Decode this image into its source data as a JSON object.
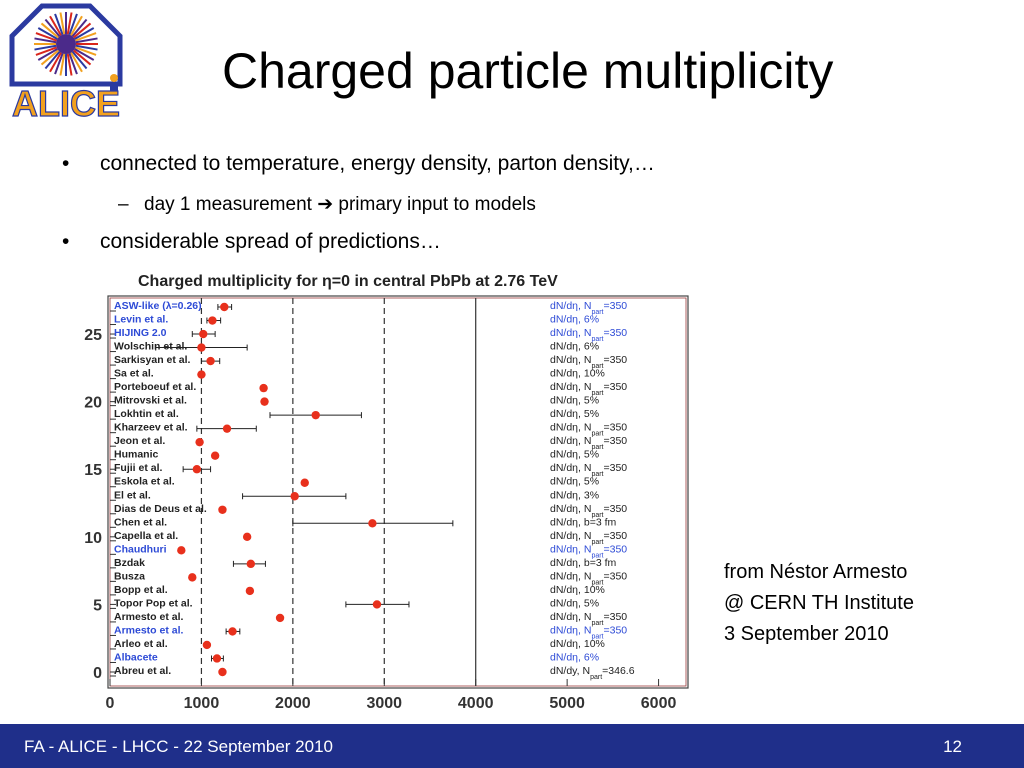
{
  "logo": {
    "text": "ALICE",
    "colors": {
      "blue": "#2b3aa0",
      "red": "#d9261c",
      "orange": "#f2a11f",
      "purple": "#4b2a8a"
    }
  },
  "slide": {
    "title": "Charged particle multiplicity",
    "bullets": [
      {
        "text": "connected to temperature, energy density, parton density,…",
        "sub": [
          "day 1 measurement ➔ primary input to models"
        ]
      },
      {
        "text": "considerable spread of predictions…",
        "sub": []
      }
    ],
    "bullet_symbol": "•",
    "sub_symbol": "–"
  },
  "credit": {
    "lines": [
      "from Néstor Armesto",
      "@ CERN TH Institute",
      "3 September 2010"
    ]
  },
  "footer": {
    "left": "FA - ALICE - LHCC - 22 September 2010",
    "right": "12",
    "color": "#1f2f8a"
  },
  "chart_data": {
    "type": "scatter",
    "title": "Charged multiplicity for η=0 in central PbPb at 2.76 TeV",
    "xlim": [
      0,
      6300
    ],
    "ylim": [
      0,
      27
    ],
    "xticks": [
      0,
      1000,
      2000,
      3000,
      4000,
      5000,
      6000
    ],
    "yticks": [
      0,
      5,
      10,
      15,
      20,
      25
    ],
    "dashed_lines_x": [
      1000,
      2000,
      3000
    ],
    "solid_lines_x": [
      4000
    ],
    "marker_color": "#e8301c",
    "label_highlight_color": "#2e4bd6",
    "models": [
      {
        "label": "ASW-like (λ=0.26)",
        "y": 27,
        "x": 1250,
        "err": [
          1180,
          1330
        ],
        "cond": "dN/dη, N",
        "sub": "part",
        "val": "=350",
        "highlight": true
      },
      {
        "label": "Levin et al.",
        "y": 26,
        "x": 1120,
        "err": [
          1060,
          1210
        ],
        "cond": "dN/dη, 6%",
        "highlight": true
      },
      {
        "label": "HIJING 2.0",
        "y": 25,
        "x": 1020,
        "err": [
          900,
          1150
        ],
        "cond": "dN/dη, N",
        "sub": "part",
        "val": "=350",
        "highlight": true
      },
      {
        "label": "Wolschin et al.",
        "y": 24,
        "x": 1000,
        "err": [
          500,
          1500
        ],
        "cond": "dN/dη, 6%"
      },
      {
        "label": "Sarkisyan et al.",
        "y": 23,
        "x": 1100,
        "err": [
          1000,
          1200
        ],
        "cond": "dN/dη, N",
        "sub": "part",
        "val": "=350"
      },
      {
        "label": "Sa et al.",
        "y": 22,
        "x": 1000,
        "cond": "dN/dη, 10%"
      },
      {
        "label": "Porteboeuf et al.",
        "y": 21,
        "x": 1680,
        "cond": "dN/dη, N",
        "sub": "part",
        "val": "=350"
      },
      {
        "label": "Mitrovski et al.",
        "y": 20,
        "x": 1690,
        "cond": "dN/dη, 5%"
      },
      {
        "label": "Lokhtin et al.",
        "y": 19,
        "x": 2250,
        "err": [
          1750,
          2750
        ],
        "cond": "dN/dη, 5%"
      },
      {
        "label": "Kharzeev et al.",
        "y": 18,
        "x": 1280,
        "err": [
          950,
          1600
        ],
        "cond": "dN/dη, N",
        "sub": "part",
        "val": "=350"
      },
      {
        "label": "Jeon et al.",
        "y": 17,
        "x": 980,
        "cond": "dN/dη, N",
        "sub": "part",
        "val": "=350"
      },
      {
        "label": "Humanic",
        "y": 16,
        "x": 1150,
        "cond": "dN/dη, 5%"
      },
      {
        "label": "Fujii et al.",
        "y": 15,
        "x": 950,
        "err": [
          800,
          1100
        ],
        "cond": "dN/dη, N",
        "sub": "part",
        "val": "=350"
      },
      {
        "label": "Eskola et al.",
        "y": 14,
        "x": 2130,
        "cond": "dN/dη, 5%"
      },
      {
        "label": "El et al.",
        "y": 13,
        "x": 2020,
        "err": [
          1450,
          2580
        ],
        "cond": "dN/dη, 3%"
      },
      {
        "label": "Dias de Deus et al.",
        "y": 12,
        "x": 1230,
        "cond": "dN/dη, N",
        "sub": "part",
        "val": "=350"
      },
      {
        "label": "Chen et al.",
        "y": 11,
        "x": 2870,
        "err": [
          2000,
          3750
        ],
        "cond": "dN/dη, b=3 fm"
      },
      {
        "label": "Capella et al.",
        "y": 10,
        "x": 1500,
        "cond": "dN/dη, N",
        "sub": "part",
        "val": "=350"
      },
      {
        "label": "Chaudhuri",
        "y": 9,
        "x": 780,
        "cond": "dN/dη, N",
        "sub": "part",
        "val": "=350",
        "highlight": true
      },
      {
        "label": "Bzdak",
        "y": 8,
        "x": 1540,
        "err": [
          1350,
          1700
        ],
        "cond": "dN/dη, b=3 fm"
      },
      {
        "label": "Busza",
        "y": 7,
        "x": 900,
        "cond": "dN/dη, N",
        "sub": "part",
        "val": "=350"
      },
      {
        "label": "Bopp et al.",
        "y": 6,
        "x": 1530,
        "cond": "dN/dη, 10%"
      },
      {
        "label": "Topor Pop et al.",
        "y": 5,
        "x": 2920,
        "err": [
          2580,
          3270
        ],
        "cond": "dN/dη, 5%"
      },
      {
        "label": "Armesto et al.",
        "y": 4,
        "x": 1860,
        "cond": "dN/dη, N",
        "sub": "part",
        "val": "=350"
      },
      {
        "label": "Armesto et al.",
        "y": 3,
        "x": 1340,
        "err": [
          1270,
          1420
        ],
        "cond": "dN/dη, N",
        "sub": "part",
        "val": "=350",
        "highlight": true
      },
      {
        "label": "Arleo et al.",
        "y": 2,
        "x": 1060,
        "cond": "dN/dη, 10%"
      },
      {
        "label": "Albacete",
        "y": 1,
        "x": 1170,
        "err": [
          1110,
          1240
        ],
        "cond": "dN/dη, 6%",
        "highlight": true
      },
      {
        "label": "Abreu et al.",
        "y": 0,
        "x": 1230,
        "cond": "dN/dy, N",
        "sub": "part",
        "val": "=346.6"
      }
    ]
  }
}
